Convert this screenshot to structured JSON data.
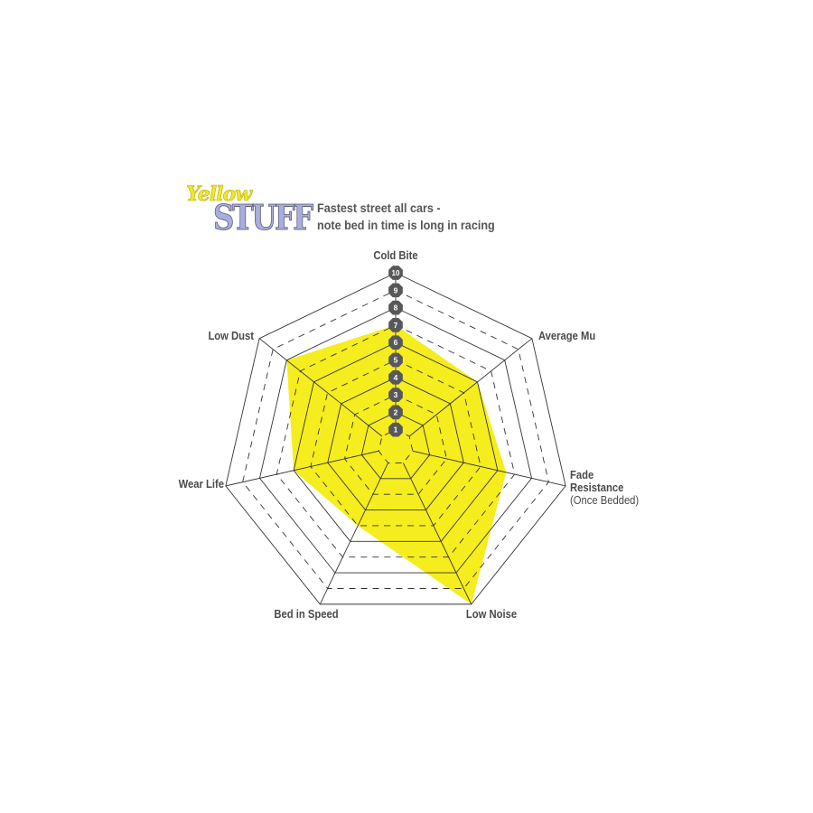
{
  "logo": {
    "line1": "Yellow",
    "line2": "STUFF"
  },
  "title": {
    "line1": "Fastest street all cars -",
    "line2": "note bed in time is long in racing"
  },
  "chart_data": {
    "type": "radar",
    "axes": [
      "Cold Bite",
      "Average Mu",
      "Fade Resistance (Once Bedded)",
      "Low Noise",
      "Bed in Speed",
      "Wear Life",
      "Low Dust"
    ],
    "axis_labels": [
      {
        "lines": [
          "Cold Bite"
        ]
      },
      {
        "lines": [
          "Average Mu"
        ]
      },
      {
        "lines": [
          "Fade",
          "Resistance",
          "(Once Bedded)"
        ]
      },
      {
        "lines": [
          "Low Noise"
        ]
      },
      {
        "lines": [
          "Bed in Speed"
        ]
      },
      {
        "lines": [
          "Wear Life"
        ]
      },
      {
        "lines": [
          "Low Dust"
        ]
      }
    ],
    "values": [
      7,
      6,
      6.5,
      10,
      5,
      6,
      8
    ],
    "range": [
      0,
      10
    ],
    "ticks": [
      "1",
      "2",
      "3",
      "4",
      "5",
      "6",
      "7",
      "8",
      "9",
      "10"
    ],
    "fill_color": "#f5ed1e",
    "grid_color": "#333333",
    "tick_badge_color": "#58585a"
  }
}
